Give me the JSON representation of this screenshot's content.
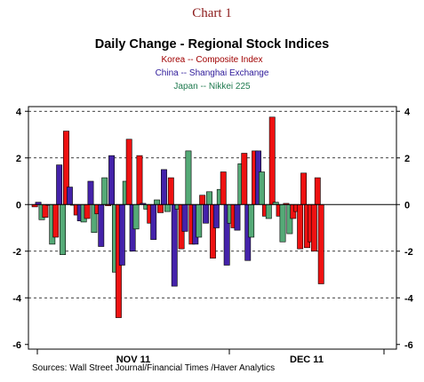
{
  "header": {
    "chart_number": "Chart 1",
    "title": "Daily Change - Regional Stock Indices"
  },
  "legend": [
    {
      "label": "Korea -- Composite Index",
      "color": "#a00000"
    },
    {
      "label": "China -- Shanghai Exchange",
      "color": "#2e1a9a"
    },
    {
      "label": "Japan -- Nikkei 225",
      "color": "#1f7a4f"
    }
  ],
  "source": "Sources:  Wall Street Journal/Financial Times /Haver Analytics",
  "colors": {
    "korea": "#ee1111",
    "china": "#4422aa",
    "japan": "#55aa77"
  },
  "chart_data": {
    "type": "bar",
    "x_labels": [
      "NOV 11",
      "DEC 11"
    ],
    "y_ticks": [
      -6,
      -4,
      -2,
      0,
      2,
      4
    ],
    "ylim": [
      -6.2,
      4.2
    ],
    "grid": "dashed horizontal at ±2, ±4",
    "series": [
      {
        "name": "Korea -- Composite Index",
        "values": [
          -0.1,
          -0.55,
          -1.4,
          3.15,
          -0.45,
          -0.6,
          -0.4,
          -0.05,
          -4.85,
          2.8,
          2.1,
          -0.8,
          -0.35,
          1.15,
          -1.9,
          -1.7,
          0.4,
          -2.3,
          1.4,
          -1.0,
          2.2,
          2.3,
          -0.5,
          3.75,
          -0.5,
          0.05,
          -0.6,
          -0.3,
          -1.9,
          1.35,
          -1.85,
          -1.6,
          -2.0,
          1.15,
          -3.4
        ]
      },
      {
        "name": "China -- Shanghai Exchange",
        "values": [
          0.1,
          0.0,
          1.7,
          0.75,
          -0.7,
          1.0,
          -1.8,
          2.1,
          -2.6,
          -2.0,
          0.05,
          -1.5,
          1.5,
          -3.5,
          -1.15,
          -1.7,
          -0.8,
          -1.0,
          -2.6,
          -1.1,
          -2.4,
          2.3
        ]
      },
      {
        "name": "Japan -- Nikkei 225",
        "values": [
          -0.65,
          -1.7,
          -2.15,
          0.0,
          -0.75,
          -1.2,
          1.15,
          -2.9,
          1.0,
          -1.05,
          -0.2,
          0.2,
          -0.3,
          -0.2,
          2.3,
          -1.4,
          0.55,
          0.65,
          -0.8,
          1.75,
          -1.4,
          1.4,
          -0.6,
          0.1,
          -1.6,
          -1.25
        ]
      }
    ]
  }
}
